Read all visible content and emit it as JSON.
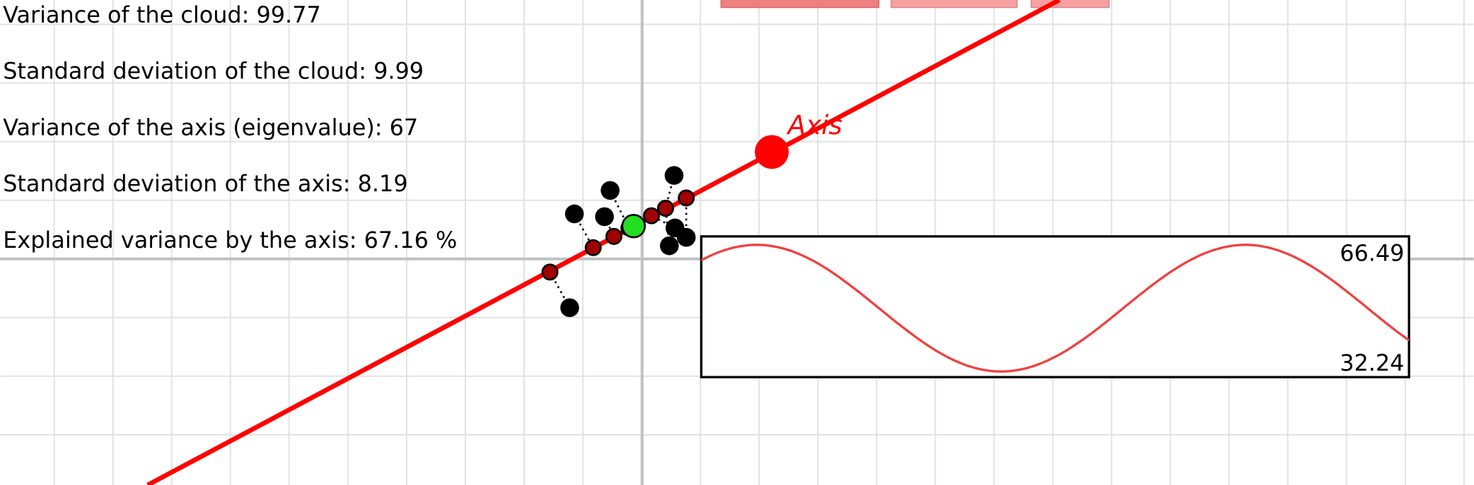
{
  "stats": [
    "Variance of the cloud: 99.77",
    "Standard deviation of the cloud: 9.99",
    "Variance of the axis (eigenvalue): 67",
    "Standard deviation of the axis: 8.19",
    "Explained variance by the axis: 67.16 %"
  ],
  "axis_label": "Axis",
  "graph": {
    "max_label": "66.49",
    "min_label": "32.24"
  }
}
